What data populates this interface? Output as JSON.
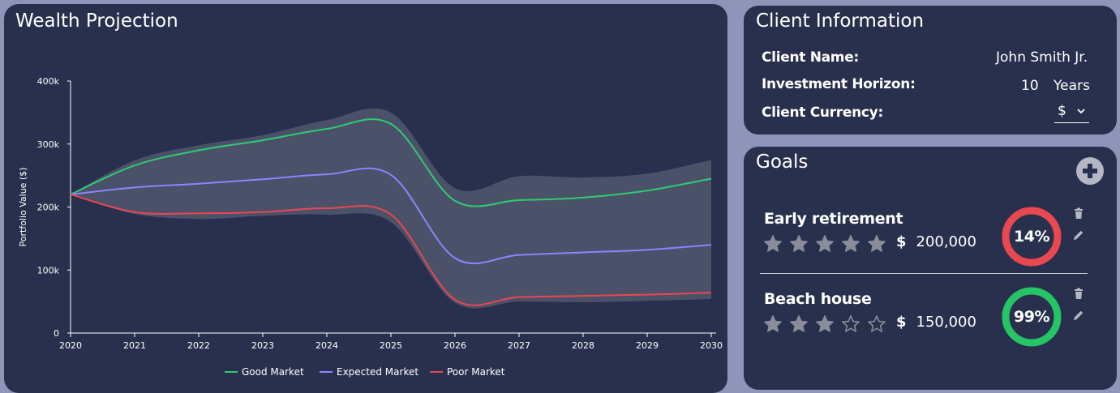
{
  "wealth_panel": {
    "title": "Wealth Projection"
  },
  "client_panel": {
    "title": "Client Information",
    "name_label": "Client Name:",
    "name_value": "John Smith Jr.",
    "horizon_label": "Investment Horizon:",
    "horizon_value": "10",
    "horizon_unit": "Years",
    "currency_label": "Client Currency:",
    "currency_value": "$"
  },
  "goals_panel": {
    "title": "Goals",
    "add_icon": "plus-circle-icon",
    "goals": [
      {
        "name": "Early retirement",
        "stars_filled": 5,
        "stars_total": 5,
        "currency": "$",
        "amount": "200,000",
        "probability": "14%",
        "probability_value": 0.14,
        "color": "#e8484f"
      },
      {
        "name": "Beach house",
        "stars_filled": 3,
        "stars_total": 5,
        "currency": "$",
        "amount": "150,000",
        "probability": "99%",
        "probability_value": 0.99,
        "color": "#25c464"
      }
    ]
  },
  "colors": {
    "panel_bg": "#29304d",
    "page_bg": "#8f95b8",
    "good": "#2ecc71",
    "expected": "#8b85ff",
    "poor": "#e8484f",
    "band": "#4b5169"
  },
  "chart_data": {
    "type": "line",
    "x": [
      2020,
      2021,
      2022,
      2023,
      2024,
      2025,
      2026,
      2027,
      2028,
      2029,
      2030
    ],
    "ylabel": "Portfolio Value ($)",
    "ylim": [
      0,
      400000
    ],
    "yticks": [
      0,
      100000,
      200000,
      300000,
      400000
    ],
    "ytick_labels": [
      "0",
      "100k",
      "200k",
      "300k",
      "400k"
    ],
    "series": [
      {
        "name": "Good Market",
        "color": "#2ecc71",
        "values": [
          220000,
          266000,
          290000,
          306000,
          324000,
          332000,
          210000,
          211000,
          215000,
          226000,
          245000
        ]
      },
      {
        "name": "Expected Market",
        "color": "#8b85ff",
        "values": [
          220000,
          231000,
          237000,
          244000,
          252000,
          251000,
          119000,
          124000,
          128000,
          132000,
          140000
        ]
      },
      {
        "name": "Poor Market",
        "color": "#e8484f",
        "values": [
          220000,
          192000,
          190000,
          192000,
          198000,
          188000,
          53000,
          57000,
          59000,
          61000,
          64000
        ]
      }
    ],
    "band": {
      "upper": [
        220000,
        274000,
        298000,
        314000,
        338000,
        350000,
        230000,
        249000,
        247000,
        253000,
        275000
      ],
      "lower": [
        220000,
        189000,
        181000,
        186000,
        188000,
        176000,
        48000,
        50000,
        49000,
        51000,
        54000
      ]
    },
    "legend": "bottom-center",
    "grid": false
  }
}
